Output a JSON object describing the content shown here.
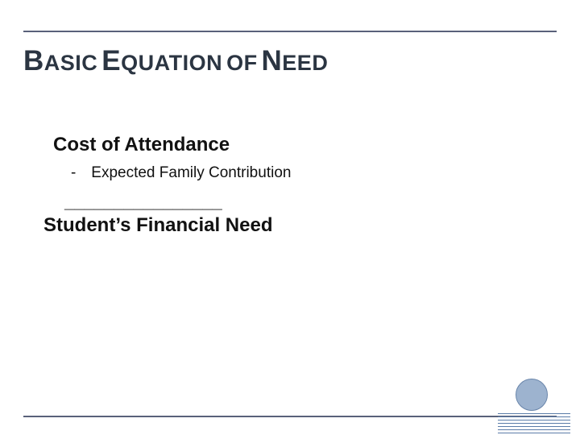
{
  "colors": {
    "border": "#59617a",
    "title": "#2b3542",
    "body": "#111111",
    "accent_line": "#5b7ca8",
    "circle_fill": "#9db3cf",
    "circle_border": "#6a86ab",
    "background": "#ffffff"
  },
  "title": {
    "words": [
      {
        "cap": "B",
        "rest": "ASIC"
      },
      {
        "cap": "E",
        "rest": "QUATION"
      },
      {
        "cap": "",
        "rest": "OF"
      },
      {
        "cap": "N",
        "rest": "EED"
      }
    ],
    "cap_fontsize": 35,
    "rest_fontsize": 27,
    "fontweight": "bold",
    "color": "#2b3542"
  },
  "equation": {
    "line1": "Cost of Attendance",
    "subtract_symbol": "-",
    "subtract_item": "Expected Family Contribution",
    "underline": "________________",
    "result": "Student’s Financial Need",
    "line1_fontsize": 24,
    "subtract_fontsize": 19,
    "result_fontsize": 24,
    "color": "#111111"
  },
  "decor": {
    "line_color": "#5b7ca8",
    "line_count": 7,
    "line_spacing": 4,
    "circle": {
      "fill": "#9db3cf",
      "border": "#6a86ab",
      "diameter": 40
    }
  }
}
